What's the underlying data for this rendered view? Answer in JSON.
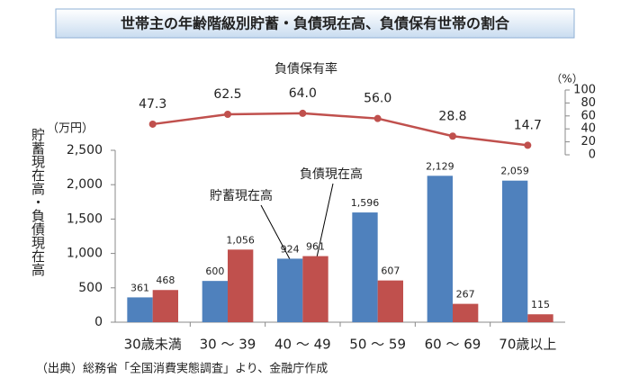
{
  "chart_data": {
    "type": "bar",
    "title": "世帯主の年齢階級別貯蓄・負債現在高、負債保有世帯の割合",
    "y_label": "貯蓄現在高・負債現在高",
    "y_unit": "（万円）",
    "y2_unit": "（%）",
    "source": "（出典）総務省「全国消費実態調査」より、金融庁作成",
    "categories": [
      "30歳未満",
      "30 ～ 39",
      "40 ～ 49",
      "50 ～ 59",
      "60 ～ 69",
      "70歳以上"
    ],
    "series": [
      {
        "name": "貯蓄現在高",
        "color": "#4f81bd",
        "values": [
          361,
          600,
          924,
          1596,
          2129,
          2059
        ],
        "value_labels": [
          "361",
          "600",
          "924",
          "1,596",
          "2,129",
          "2,059"
        ]
      },
      {
        "name": "負債現在高",
        "color": "#c0504d",
        "values": [
          468,
          1056,
          961,
          607,
          267,
          115
        ],
        "value_labels": [
          "468",
          "1,056",
          "961",
          "607",
          "267",
          "115"
        ]
      },
      {
        "name": "負債保有率",
        "color": "#c0504d",
        "axis": "y2",
        "type": "line",
        "values": [
          47.3,
          62.5,
          64.0,
          56.0,
          28.8,
          14.7
        ],
        "value_labels": [
          "47.3",
          "62.5",
          "64.0",
          "56.0",
          "28.8",
          "14.7"
        ]
      }
    ],
    "ylim": [
      0,
      2500
    ],
    "yticks": [
      0,
      500,
      {
        "value": 1000,
        "label": "1,000"
      },
      {
        "value": 1500,
        "label": "1,500"
      },
      {
        "value": 2000,
        "label": "2,000"
      },
      {
        "value": 2500,
        "label": "2,500"
      }
    ],
    "y2lim": [
      0,
      100
    ],
    "y2ticks": [
      0,
      20,
      40,
      60,
      80,
      100
    ],
    "grid": false
  }
}
